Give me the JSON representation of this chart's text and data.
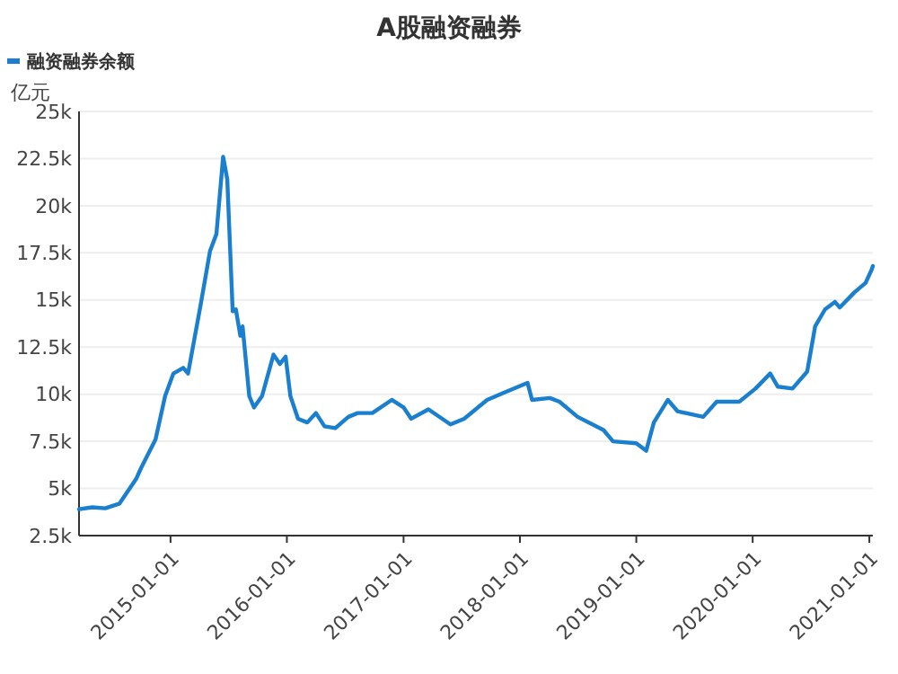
{
  "chart_data": {
    "type": "line",
    "title": "A股融资融券",
    "ylabel": "亿元",
    "legend": "top left",
    "grid": "y",
    "marker": "none",
    "line_style": "solid",
    "x": [
      "2014-03-20",
      "2014-05-01",
      "2014-06-10",
      "2014-07-25",
      "2014-09-15",
      "2014-10-01",
      "2014-11-15",
      "2014-12-15",
      "2015-01-10",
      "2015-02-10",
      "2015-02-25",
      "2015-04-05",
      "2015-05-05",
      "2015-05-25",
      "2015-06-15",
      "2015-06-28",
      "2015-07-15",
      "2015-07-25",
      "2015-08-08",
      "2015-08-15",
      "2015-09-05",
      "2015-09-20",
      "2015-10-15",
      "2015-11-20",
      "2015-12-10",
      "2015-12-28",
      "2016-01-12",
      "2016-02-05",
      "2016-03-05",
      "2016-04-01",
      "2016-04-28",
      "2016-06-01",
      "2016-07-12",
      "2016-08-10",
      "2016-09-25",
      "2016-11-25",
      "2017-01-01",
      "2017-01-25",
      "2017-03-20",
      "2017-05-28",
      "2017-07-10",
      "2017-09-20",
      "2017-11-15",
      "2018-01-25",
      "2018-02-08",
      "2018-04-05",
      "2018-05-05",
      "2018-07-01",
      "2018-09-20",
      "2018-10-20",
      "2019-01-01",
      "2019-02-01",
      "2019-02-25",
      "2019-04-10",
      "2019-05-10",
      "2019-07-30",
      "2019-09-10",
      "2019-11-20",
      "2020-01-10",
      "2020-02-25",
      "2020-03-20",
      "2020-05-05",
      "2020-06-20",
      "2020-07-15",
      "2020-08-15",
      "2020-09-15",
      "2020-09-30",
      "2020-11-15",
      "2020-12-20",
      "2021-01-08",
      "2021-01-12"
    ],
    "series": [
      {
        "name": "融资融券余额",
        "color": "#1a7fcf",
        "values": [
          3900,
          4000,
          3950,
          4200,
          5500,
          6100,
          7600,
          9900,
          11100,
          11400,
          11100,
          14700,
          17600,
          18500,
          22600,
          21400,
          14400,
          14500,
          13100,
          13600,
          9900,
          9300,
          9900,
          12100,
          11600,
          12000,
          9900,
          8700,
          8500,
          9000,
          8300,
          8200,
          8800,
          9000,
          9000,
          9700,
          9300,
          8700,
          9200,
          8400,
          8700,
          9700,
          10100,
          10600,
          9700,
          9800,
          9600,
          8800,
          8100,
          7500,
          7400,
          7000,
          8500,
          9700,
          9100,
          8800,
          9600,
          9600,
          10300,
          11100,
          10400,
          10300,
          11200,
          13600,
          14500,
          14900,
          14600,
          15400,
          15900,
          16600,
          16800
        ]
      }
    ],
    "xlim": [
      "2014-03-20",
      "2021-01-12"
    ],
    "xticks": [
      {
        "value": "2015-01-01",
        "label": "2015-01-01"
      },
      {
        "value": "2016-01-01",
        "label": "2016-01-01"
      },
      {
        "value": "2017-01-01",
        "label": "2017-01-01"
      },
      {
        "value": "2018-01-01",
        "label": "2018-01-01"
      },
      {
        "value": "2019-01-01",
        "label": "2019-01-01"
      },
      {
        "value": "2020-01-01",
        "label": "2020-01-01"
      },
      {
        "value": "2021-01-01",
        "label": "2021-01-01"
      }
    ],
    "ylim": [
      2500,
      25000
    ],
    "yticks": [
      {
        "value": 2500,
        "label": "2.5k"
      },
      {
        "value": 5000,
        "label": "5k"
      },
      {
        "value": 7500,
        "label": "7.5k"
      },
      {
        "value": 10000,
        "label": "10k"
      },
      {
        "value": 12500,
        "label": "12.5k"
      },
      {
        "value": 15000,
        "label": "15k"
      },
      {
        "value": 17500,
        "label": "17.5k"
      },
      {
        "value": 20000,
        "label": "20k"
      },
      {
        "value": 22500,
        "label": "22.5k"
      },
      {
        "value": 25000,
        "label": "25k"
      }
    ]
  }
}
